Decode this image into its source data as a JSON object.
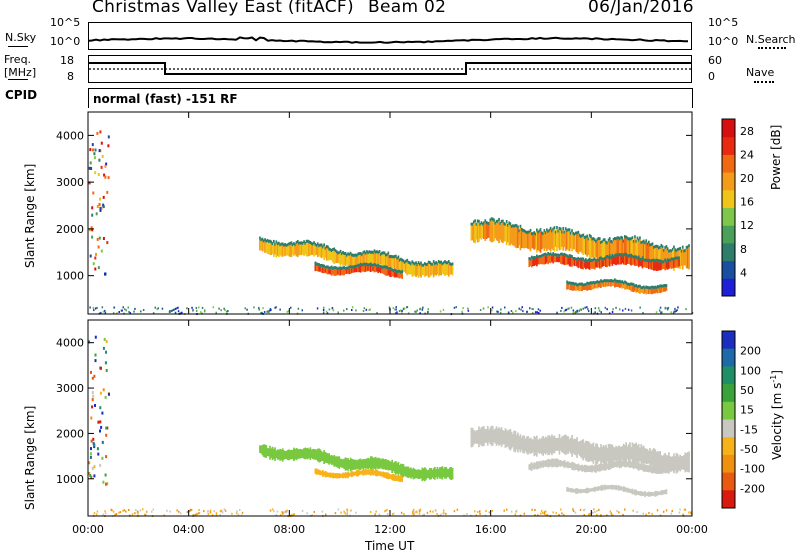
{
  "header": {
    "title": "Christmas Valley East (fitACF)",
    "beam": "Beam 02",
    "date": "06/Jan/2016"
  },
  "left_labels": {
    "nsky": "N.Sky",
    "freq_line1": "Freq.",
    "freq_line2": "[MHz]",
    "cpid": "CPID"
  },
  "right_labels": {
    "nsearch": "N.Search",
    "nave": "Nave"
  },
  "noise_panel": {
    "left_ticks": [
      "10^5",
      "10^0"
    ],
    "right_ticks": [
      "10^5",
      "10^0"
    ]
  },
  "freq_panel": {
    "left_ticks": [
      "18",
      "8"
    ],
    "right_ticks": [
      "60",
      "0"
    ]
  },
  "cpid_text": "normal (fast) -151 RF",
  "colors": {
    "power_scale": [
      "#1f1fd8",
      "#1a4fa0",
      "#2e7d6b",
      "#4aa05a",
      "#7ec74a",
      "#f0c419",
      "#f59b1a",
      "#f06a14",
      "#e82a10",
      "#d80f0f"
    ],
    "velocity_scale": [
      "#1b2fbf",
      "#1e6aa8",
      "#1f8f68",
      "#3aa23a",
      "#78c840",
      "#c8c8c0",
      "#f7b21b",
      "#f0900f",
      "#e85a10",
      "#d81a0f"
    ]
  },
  "chart_data": [
    {
      "type": "heatmap",
      "name": "power",
      "ylabel": "Slant Range [km]",
      "yticks": [
        "1000",
        "2000",
        "3000",
        "4000"
      ],
      "ylim": [
        180,
        4500
      ],
      "xticks": [
        "00:00",
        "04:00",
        "08:00",
        "12:00",
        "16:00",
        "20:00",
        "00:00"
      ],
      "colorbar_label": "Power [dB]",
      "colorbar_ticks": [
        "4",
        "8",
        "12",
        "16",
        "20",
        "24",
        "28"
      ],
      "colorbar_range": [
        0,
        30
      ],
      "bands": [
        {
          "start": 6.8,
          "end": 14.5,
          "center": [
            1650,
            1050
          ],
          "width": 140,
          "value": 20
        },
        {
          "start": 9.0,
          "end": 12.5,
          "center": [
            1150,
            1050
          ],
          "width": 70,
          "value": 26
        },
        {
          "start": 15.2,
          "end": 23.9,
          "center": [
            1950,
            1350
          ],
          "width": 220,
          "value": 22
        },
        {
          "start": 17.5,
          "end": 23.5,
          "center": [
            1300,
            1250
          ],
          "width": 90,
          "value": 27
        },
        {
          "start": 19.0,
          "end": 23.0,
          "center": [
            800,
            700
          ],
          "width": 60,
          "value": 24
        }
      ]
    },
    {
      "type": "heatmap",
      "name": "velocity",
      "ylabel": "Slant Range [km]",
      "yticks": [
        "1000",
        "2000",
        "3000",
        "4000"
      ],
      "ylim": [
        180,
        4500
      ],
      "xticks": [
        "00:00",
        "04:00",
        "08:00",
        "12:00",
        "16:00",
        "20:00",
        "00:00"
      ],
      "xlabel": "Time UT",
      "colorbar_label": "Velocity [m s^-1]",
      "colorbar_ticks": [
        "200",
        "100",
        "50",
        "15",
        "-15",
        "-50",
        "-100",
        "-200"
      ],
      "colorbar_range": [
        -250,
        250
      ]
    }
  ]
}
